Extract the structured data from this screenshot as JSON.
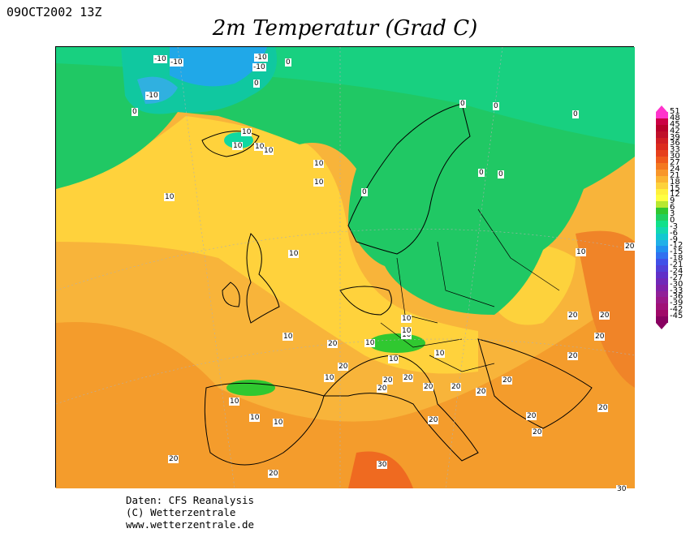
{
  "header": {
    "date_label": "09OCT2002 13Z",
    "title": "2m Temperatur (Grad C)"
  },
  "credits": {
    "line1": "Daten: CFS Reanalysis",
    "line2": "(C) Wetterzentrale",
    "line3": "www.wetterzentrale.de"
  },
  "legend": {
    "labels": [
      "51",
      "48",
      "45",
      "42",
      "39",
      "36",
      "33",
      "30",
      "27",
      "24",
      "21",
      "18",
      "15",
      "12",
      "9",
      "6",
      "3",
      "0",
      "-3",
      "-6",
      "-9",
      "-12",
      "-15",
      "-18",
      "-21",
      "-24",
      "-27",
      "-30",
      "-33",
      "-36",
      "-39",
      "-42",
      "-45"
    ],
    "colors": [
      "#ff33cc",
      "#cc0044",
      "#b8002a",
      "#c0102a",
      "#d01e24",
      "#dc2a1e",
      "#e6401c",
      "#ef5a1c",
      "#f47820",
      "#f8962a",
      "#fbb432",
      "#fdd23c",
      "#fff03c",
      "#ffff40",
      "#b8e830",
      "#30c830",
      "#20d060",
      "#10e08a",
      "#10d8b0",
      "#10c8d0",
      "#20b0e8",
      "#2090f0",
      "#3070f0",
      "#4050e8",
      "#5040d8",
      "#6030c8",
      "#7028b8",
      "#8020a8",
      "#902098",
      "#9a1888",
      "#a01078",
      "#a00868",
      "#880060"
    ]
  },
  "map_labels": [
    "-10",
    "-10",
    "-10",
    "-10",
    "-10",
    "0",
    "0",
    "0",
    "0",
    "0",
    "0",
    "0",
    "0",
    "0",
    "10",
    "10",
    "10",
    "10",
    "10",
    "10",
    "10",
    "10",
    "10",
    "10",
    "10",
    "10",
    "10",
    "10",
    "10",
    "10",
    "10",
    "10",
    "10",
    "10",
    "20",
    "20",
    "20",
    "20",
    "20",
    "20",
    "20",
    "20",
    "20",
    "20",
    "20",
    "20",
    "20",
    "20",
    "20",
    "20",
    "20",
    "20",
    "20",
    "20",
    "30",
    "30"
  ]
}
